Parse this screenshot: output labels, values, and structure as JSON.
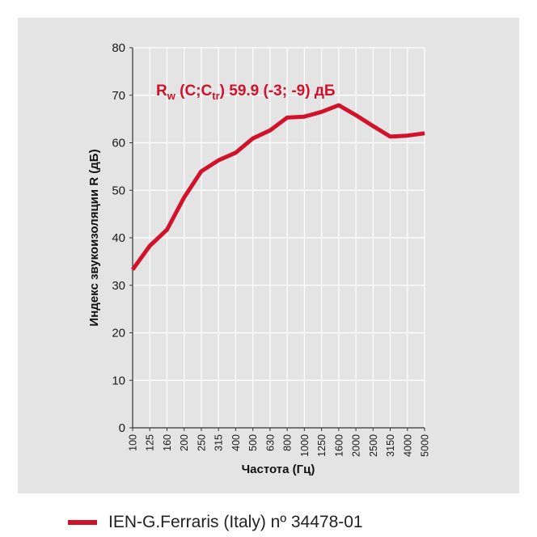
{
  "chart_data": {
    "type": "line",
    "categories": [
      "100",
      "125",
      "160",
      "200",
      "250",
      "315",
      "400",
      "500",
      "630",
      "800",
      "1000",
      "1250",
      "1600",
      "2000",
      "2500",
      "3150",
      "4000",
      "5000"
    ],
    "series": [
      {
        "name": "IEN-G.Ferraris (Italy) nº 34478-01",
        "color": "#d2122a",
        "values": [
          33.3,
          38.3,
          41.7,
          48.5,
          54.0,
          56.3,
          57.9,
          60.9,
          62.6,
          65.3,
          65.5,
          66.5,
          67.9,
          65.8,
          63.5,
          61.3,
          61.5,
          62.0
        ]
      }
    ],
    "xlabel": "Частота (Гц)",
    "ylabel": "Индекс звукоизоляции R (дБ)",
    "ylim": [
      0,
      80
    ],
    "yticks": [
      "0",
      "10",
      "20",
      "30",
      "40",
      "50",
      "60",
      "70",
      "80"
    ],
    "grid": true,
    "annotation": {
      "R": "R",
      "w": "w",
      "pre": " (C;C",
      "tr": "tr",
      "post": ") 59.9 (-3; -9) дБ"
    }
  },
  "legend": {
    "label": "IEN-G.Ferraris (Italy) nº 34478-01",
    "color": "#d2122a"
  }
}
